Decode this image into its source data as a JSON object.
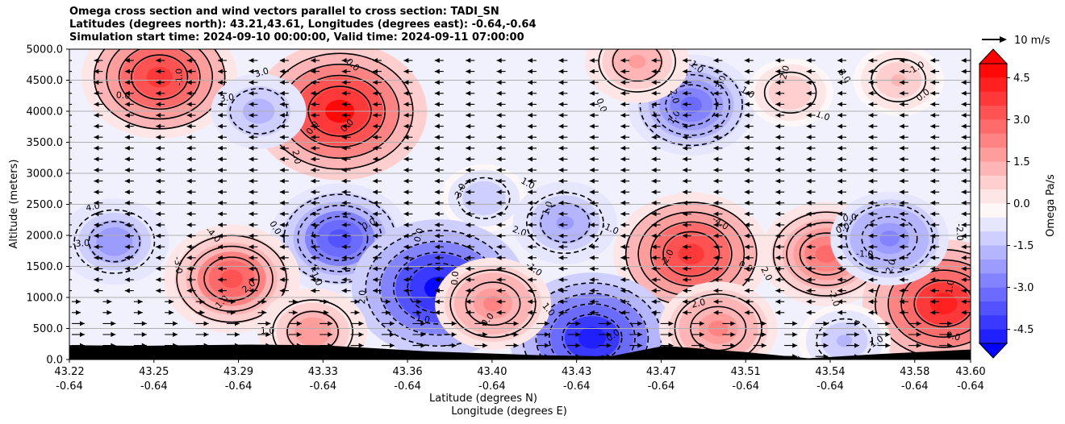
{
  "title": {
    "line1": "Omega cross section and wind vectors parallel to cross section: TADI_SN",
    "line2": "Latitudes (degrees north): 43.21,43.61, Longitudes (degrees east): -0.64,-0.64",
    "line3": "Simulation start time: 2024-09-10 00:00:00, Valid time: 2024-09-11 07:00:00"
  },
  "chart_data": {
    "type": "heatmap",
    "ylabel": "Altitude (meters)",
    "xlabel_line1": "Latitude (degrees N)",
    "xlabel_line2": "Longitude (degrees E)",
    "ylim": [
      0,
      5000
    ],
    "yticks": [
      "0.0",
      "500.0",
      "1000.0",
      "1500.0",
      "2000.0",
      "2500.0",
      "3000.0",
      "3500.0",
      "4000.0",
      "4500.0",
      "5000.0"
    ],
    "xticks_lat": [
      "43.22",
      "43.25",
      "43.29",
      "43.33",
      "43.36",
      "43.40",
      "43.43",
      "43.47",
      "43.51",
      "43.54",
      "43.58",
      "43.60"
    ],
    "xticks_lon": [
      "-0.64",
      "-0.64",
      "-0.64",
      "-0.64",
      "-0.64",
      "-0.64",
      "-0.64",
      "-0.64",
      "-0.64",
      "-0.64",
      "-0.64",
      "-0.64"
    ],
    "grid": "horizontal",
    "colorbar": {
      "label": "Omega Pa/s",
      "ticks": [
        "4.5",
        "3.0",
        "1.5",
        "0.0",
        "-1.5",
        "-3.0",
        "-4.5"
      ],
      "range": [
        -5,
        5
      ],
      "colors": {
        "negative": "#0000ff",
        "neutral": "#ffffff",
        "positive": "#ff0000"
      }
    },
    "quiver_key": "10 m/s",
    "cells": [
      {
        "x": 0.1,
        "y": 4550,
        "v": 4.2
      },
      {
        "x": 0.3,
        "y": 4000,
        "v": 5.0
      },
      {
        "x": 0.21,
        "y": 4000,
        "v": -1.6
      },
      {
        "x": 0.46,
        "y": 2600,
        "v": -1.2
      },
      {
        "x": 0.3,
        "y": 1950,
        "v": -3.5
      },
      {
        "x": 0.41,
        "y": 1150,
        "v": -5.0
      },
      {
        "x": 0.18,
        "y": 1300,
        "v": 3.4
      },
      {
        "x": 0.05,
        "y": 1900,
        "v": -2.2
      },
      {
        "x": 0.69,
        "y": 1700,
        "v": 4.2
      },
      {
        "x": 0.84,
        "y": 1700,
        "v": 3.2
      },
      {
        "x": 0.97,
        "y": 900,
        "v": 4.5
      },
      {
        "x": 0.58,
        "y": 350,
        "v": -4.6
      },
      {
        "x": 0.91,
        "y": 1950,
        "v": -2.6
      },
      {
        "x": 0.69,
        "y": 4100,
        "v": -3.0
      },
      {
        "x": 0.63,
        "y": 4800,
        "v": 2.0
      },
      {
        "x": 0.8,
        "y": 4300,
        "v": 1.2
      },
      {
        "x": 0.92,
        "y": 4500,
        "v": 1.4
      },
      {
        "x": 0.27,
        "y": 450,
        "v": 2.2
      },
      {
        "x": 0.47,
        "y": 900,
        "v": 2.5
      },
      {
        "x": 0.72,
        "y": 500,
        "v": 2.6
      },
      {
        "x": 0.55,
        "y": 2200,
        "v": -2.0
      },
      {
        "x": 0.86,
        "y": 300,
        "v": -1.5
      }
    ],
    "contour_labels": [
      "-1.0",
      "0.0",
      "3.0",
      "2.0",
      "0.0",
      "0.0",
      "-1.0",
      "4.0",
      "0.0",
      "2.0",
      "1.0",
      "0.0",
      "0.0",
      "1.0",
      "0.0",
      "-2.0",
      "0.0",
      "1.0",
      "-1.0",
      "0.0",
      "1.0",
      "1.0",
      "0.0",
      "0.0",
      "2.0",
      "-3.0",
      "0.0",
      "1.0",
      "-4.0",
      "-3.0",
      "-2.0",
      "0.0",
      "0.0",
      "1.0",
      "-2.0",
      "1.0",
      "1.0",
      "1.0",
      "3.0",
      "2.0",
      "0.0",
      "2.0",
      "-1.0",
      "-2.0",
      "0.0",
      "0.0",
      "3.0",
      "1.0",
      "-1.0",
      "0.0",
      "2.0",
      "-3.0",
      "-4.0",
      "-2.0",
      "2.0",
      "0.0",
      "-1.0",
      "1.0",
      "2.0",
      "3.0",
      "-1.0",
      "0.0"
    ],
    "contour_levels": [
      -4,
      -3,
      -2,
      -1,
      0,
      1,
      2,
      3,
      4
    ]
  }
}
